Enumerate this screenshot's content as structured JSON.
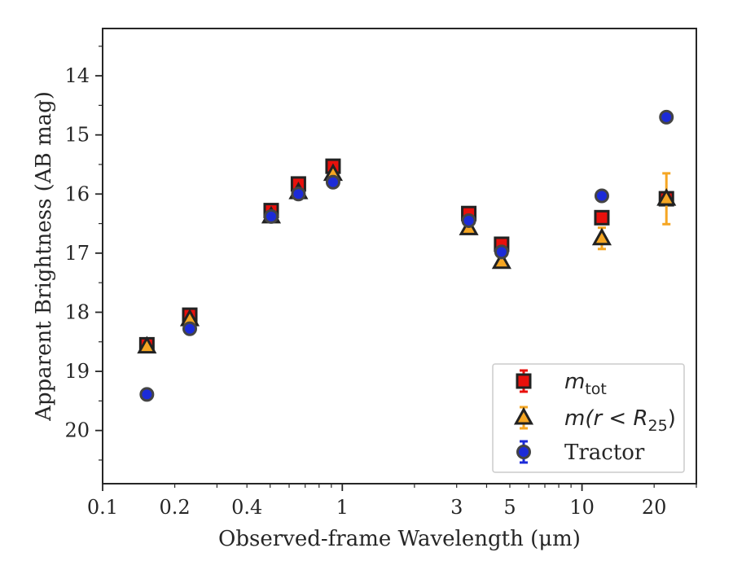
{
  "chart_data": {
    "type": "scatter",
    "xlabel": "Observed-frame Wavelength (μm)",
    "ylabel": "Apparent Brightness (AB mag)",
    "x_scale": "log",
    "y_inverted": true,
    "xlim": [
      0.1,
      30
    ],
    "ylim": [
      20.9,
      13.2
    ],
    "x_ticks": [
      0.1,
      0.2,
      0.4,
      1,
      3,
      5,
      10,
      20
    ],
    "x_tick_labels": [
      "0.1",
      "0.2",
      "0.4",
      "1",
      "3",
      "5",
      "10",
      "20"
    ],
    "y_ticks": [
      14,
      15,
      16,
      17,
      18,
      19,
      20
    ],
    "y_tick_labels": [
      "14",
      "15",
      "16",
      "17",
      "18",
      "19",
      "20"
    ],
    "grid": false,
    "legend_position": "lower right",
    "series": [
      {
        "name": "m_tot",
        "legend_base": "m",
        "legend_sub": "tot",
        "marker": "square",
        "color": "#e8100c",
        "error_color": "#e8100c",
        "x": [
          0.153,
          0.231,
          0.505,
          0.656,
          0.915,
          3.37,
          4.62,
          12.1,
          22.5
        ],
        "y": [
          18.55,
          18.05,
          16.28,
          15.83,
          15.53,
          16.33,
          16.85,
          16.4,
          16.08
        ],
        "yerr": [
          0.04,
          0.04,
          0.02,
          0.02,
          0.02,
          0.03,
          0.04,
          0.05,
          0.08
        ]
      },
      {
        "name": "m(r < R_25)",
        "legend_base": "m(r < R",
        "legend_sub": "25",
        "legend_tail": ")",
        "marker": "triangle",
        "color": "#f5a623",
        "error_color": "#f5a623",
        "x": [
          0.153,
          0.231,
          0.505,
          0.656,
          0.915,
          3.37,
          4.62,
          12.1,
          22.5
        ],
        "y": [
          18.58,
          18.12,
          16.38,
          15.97,
          15.66,
          16.58,
          17.15,
          16.75,
          16.08
        ],
        "yerr": [
          0.04,
          0.04,
          0.02,
          0.02,
          0.02,
          0.04,
          0.05,
          0.18,
          0.43
        ]
      },
      {
        "name": "Tractor",
        "marker": "circle",
        "color": "#1c2bd8",
        "error_color": "#1c2bd8",
        "x": [
          0.153,
          0.231,
          0.505,
          0.656,
          0.915,
          3.37,
          4.62,
          12.1,
          22.5
        ],
        "y": [
          19.39,
          18.28,
          16.38,
          16.0,
          15.8,
          16.45,
          16.98,
          16.03,
          14.7
        ],
        "yerr": [
          0.08,
          0.05,
          0.02,
          0.02,
          0.02,
          0.03,
          0.05,
          0.07,
          0.08
        ]
      }
    ]
  }
}
